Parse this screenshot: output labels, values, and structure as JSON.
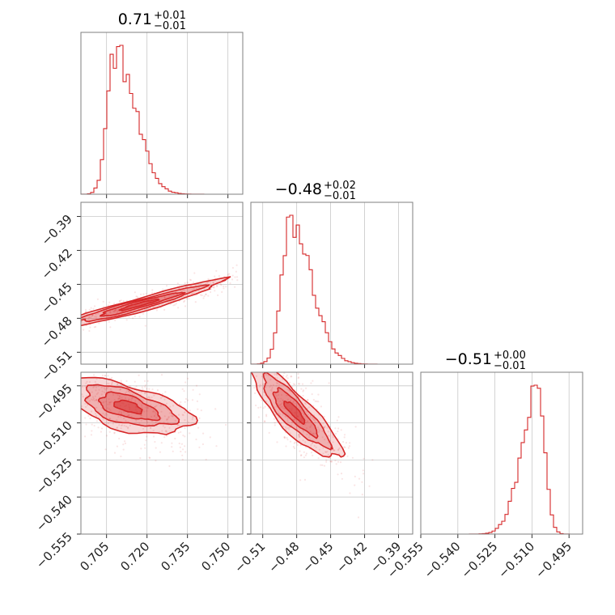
{
  "chart_data": {
    "type": "corner",
    "color": "#d62728",
    "ndim": 3,
    "grid": true,
    "parameters": [
      {
        "title_value": "0.71",
        "title_plus": "+0.01",
        "title_minus": "−0.01",
        "range": [
          0.6955,
          0.7555
        ],
        "ticks": [
          0.705,
          0.72,
          0.735,
          0.75
        ],
        "tick_labels": [
          "0.705",
          "0.720",
          "0.735",
          "0.750"
        ],
        "hist_peak": 0.708,
        "hist_sigma_left": 0.0028,
        "hist_sigma_right": 0.0075
      },
      {
        "title_value": "−0.48",
        "title_plus": "+0.02",
        "title_minus": "−0.01",
        "range": [
          -0.5205,
          -0.3775
        ],
        "ticks": [
          -0.51,
          -0.48,
          -0.45,
          -0.42,
          -0.39
        ],
        "tick_labels": [
          "−0.51",
          "−0.48",
          "−0.45",
          "−0.42",
          "−0.39"
        ],
        "hist_peak": -0.485,
        "hist_sigma_left": 0.008,
        "hist_sigma_right": 0.018
      },
      {
        "title_value": "−0.51",
        "title_plus": "+0.00",
        "title_minus": "−0.01",
        "range": [
          -0.555,
          -0.4895
        ],
        "ticks": [
          -0.555,
          -0.54,
          -0.525,
          -0.51,
          -0.495
        ],
        "tick_labels": [
          "−0.555",
          "−0.540",
          "−0.525",
          "−0.510",
          "−0.495"
        ],
        "hist_peak": -0.5075,
        "hist_sigma_left": 0.0065,
        "hist_sigma_right": 0.0028
      }
    ],
    "pairs": [
      {
        "row": 1,
        "col": 0,
        "center": [
          0.717,
          -0.468
        ],
        "axis_angle_deg": 34,
        "sd_major": 0.019,
        "sd_minor": 0.0026,
        "scatter_extent": [
          [
            0.699,
            0.752
          ],
          [
            -0.512,
            -0.392
          ]
        ]
      },
      {
        "row": 2,
        "col": 0,
        "center": [
          0.713,
          -0.5035
        ],
        "axis_angle_deg": -18,
        "sd_major": 0.012,
        "sd_minor": 0.0045,
        "scatter_extent": [
          [
            0.698,
            0.752
          ],
          [
            -0.55,
            -0.492
          ]
        ]
      },
      {
        "row": 2,
        "col": 1,
        "center": [
          -0.482,
          -0.5055
        ],
        "axis_angle_deg": -24,
        "sd_major": 0.022,
        "sd_minor": 0.0045,
        "scatter_extent": [
          [
            -0.515,
            -0.39
          ],
          [
            -0.55,
            -0.492
          ]
        ]
      }
    ]
  }
}
